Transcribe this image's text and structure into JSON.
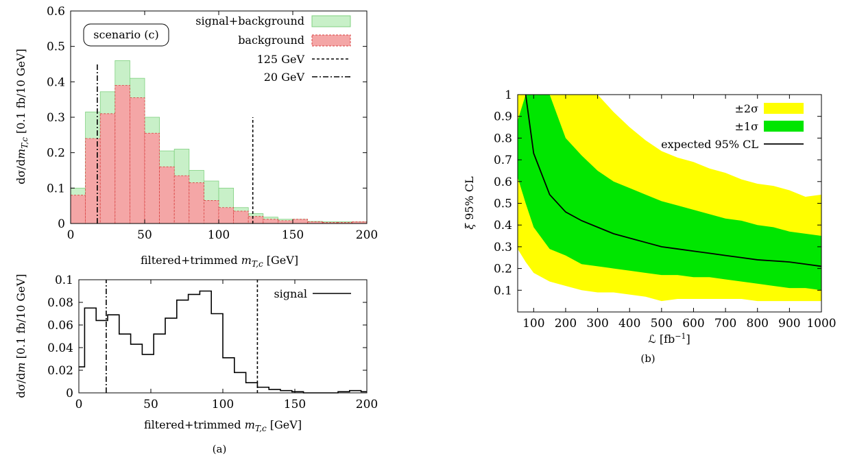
{
  "captions": {
    "left": "(a)",
    "right": "(b)"
  },
  "colors": {
    "signal_bg_fill": "#c8f0c8",
    "signal_bg_edge": "#7fd07f",
    "background_fill": "#f4a6a6",
    "background_edge": "#d94040",
    "band2": "#ffff00",
    "band1": "#00e600",
    "line": "#000000"
  },
  "chart_data": [
    {
      "id": "top",
      "type": "histogram",
      "xlabel": "filtered+trimmed m_T,c [GeV]",
      "ylabel": "dσ/dm_T,c [0.1 fb/10 GeV]",
      "annotation": "scenario (c)",
      "xlim": [
        0,
        200
      ],
      "ylim": [
        0,
        0.6
      ],
      "xticks": [
        "0",
        "50",
        "100",
        "150",
        "200"
      ],
      "yticks": [
        "0",
        "0.1",
        "0.2",
        "0.3",
        "0.4",
        "0.5",
        "0.6"
      ],
      "bin_width": 10,
      "bin_edges_start": 0,
      "series": [
        {
          "name": "signal+background",
          "values": [
            0.1,
            0.315,
            0.372,
            0.46,
            0.41,
            0.3,
            0.205,
            0.21,
            0.15,
            0.12,
            0.1,
            0.045,
            0.028,
            0.018,
            0.012,
            0.012,
            0.006,
            0.005,
            0.005,
            0.005
          ]
        },
        {
          "name": "background",
          "values": [
            0.08,
            0.24,
            0.31,
            0.39,
            0.355,
            0.255,
            0.16,
            0.135,
            0.115,
            0.065,
            0.045,
            0.035,
            0.02,
            0.012,
            0.008,
            0.012,
            0.005,
            0.003,
            0.003,
            0.005
          ]
        }
      ],
      "vlines": [
        {
          "name": "125 GeV",
          "x": 123,
          "y_top": 0.3,
          "style": "dashed"
        },
        {
          "name": "20 GeV",
          "x": 18,
          "y_top": 0.45,
          "style": "dashdot"
        }
      ],
      "legend": [
        "signal+background",
        "background",
        "125 GeV",
        "20 GeV"
      ],
      "legend_position": "top-right"
    },
    {
      "id": "bottom",
      "type": "histogram",
      "xlabel": "filtered+trimmed m_T,c [GeV]",
      "ylabel": "dσ/dm [0.1 fb/10 GeV]",
      "xlim": [
        0,
        200
      ],
      "ylim": [
        0,
        0.1
      ],
      "xticks": [
        "0",
        "50",
        "100",
        "150",
        "200"
      ],
      "yticks": [
        "0",
        "0.02",
        "0.04",
        "0.06",
        "0.08",
        "0.1"
      ],
      "bin_width": 8,
      "bin_edges_start": -4,
      "series": [
        {
          "name": "signal",
          "values": [
            0.023,
            0.075,
            0.064,
            0.069,
            0.052,
            0.043,
            0.034,
            0.052,
            0.066,
            0.082,
            0.087,
            0.09,
            0.07,
            0.031,
            0.018,
            0.009,
            0.005,
            0.003,
            0.002,
            0.001,
            0.0,
            0.0,
            0.0,
            0.001,
            0.002,
            0.001
          ]
        }
      ],
      "vlines": [
        {
          "x": 124,
          "y_top": 0.1,
          "style": "dashed"
        },
        {
          "x": 19,
          "y_top": 0.1,
          "style": "dashdot"
        }
      ],
      "legend": [
        "signal"
      ],
      "legend_position": "top-right"
    },
    {
      "id": "right",
      "type": "area",
      "xlabel": "ℒ [fb⁻¹]",
      "ylabel": "ξ 95% CL",
      "xlim": [
        50,
        1000
      ],
      "ylim": [
        0,
        1
      ],
      "xticks": [
        "100",
        "200",
        "300",
        "400",
        "500",
        "600",
        "700",
        "800",
        "900",
        "1000"
      ],
      "yticks": [
        "0.1",
        "0.2",
        "0.3",
        "0.4",
        "0.5",
        "0.6",
        "0.7",
        "0.8",
        "0.9",
        "1"
      ],
      "x": [
        50,
        75,
        100,
        150,
        200,
        250,
        300,
        350,
        400,
        450,
        500,
        550,
        600,
        650,
        700,
        750,
        800,
        850,
        900,
        950,
        1000
      ],
      "series": [
        {
          "name": "±2σ",
          "upper": [
            1.0,
            1.0,
            1.0,
            1.0,
            1.0,
            1.0,
            1.0,
            0.92,
            0.85,
            0.79,
            0.74,
            0.71,
            0.69,
            0.66,
            0.64,
            0.61,
            0.59,
            0.58,
            0.56,
            0.53,
            0.54
          ],
          "lower": [
            0.29,
            0.23,
            0.18,
            0.14,
            0.12,
            0.1,
            0.09,
            0.09,
            0.08,
            0.07,
            0.05,
            0.06,
            0.06,
            0.06,
            0.06,
            0.06,
            0.05,
            0.05,
            0.05,
            0.05,
            0.05
          ]
        },
        {
          "name": "±1σ",
          "upper": [
            0.88,
            1.0,
            1.0,
            1.0,
            0.8,
            0.72,
            0.65,
            0.6,
            0.57,
            0.54,
            0.51,
            0.49,
            0.47,
            0.45,
            0.43,
            0.42,
            0.4,
            0.39,
            0.37,
            0.36,
            0.35
          ],
          "lower": [
            0.62,
            0.5,
            0.39,
            0.29,
            0.26,
            0.22,
            0.21,
            0.2,
            0.19,
            0.18,
            0.17,
            0.17,
            0.16,
            0.16,
            0.15,
            0.14,
            0.13,
            0.12,
            0.11,
            0.11,
            0.1
          ]
        },
        {
          "name": "expected 95% CL",
          "values": [
            null,
            1.0,
            0.73,
            0.54,
            0.46,
            0.42,
            0.39,
            0.36,
            0.34,
            0.32,
            0.3,
            0.29,
            0.28,
            0.27,
            0.26,
            0.25,
            0.24,
            0.235,
            0.23,
            0.22,
            0.21
          ]
        }
      ],
      "legend": [
        "±2σ",
        "±1σ",
        "expected 95% CL"
      ],
      "legend_position": "top-right"
    }
  ]
}
